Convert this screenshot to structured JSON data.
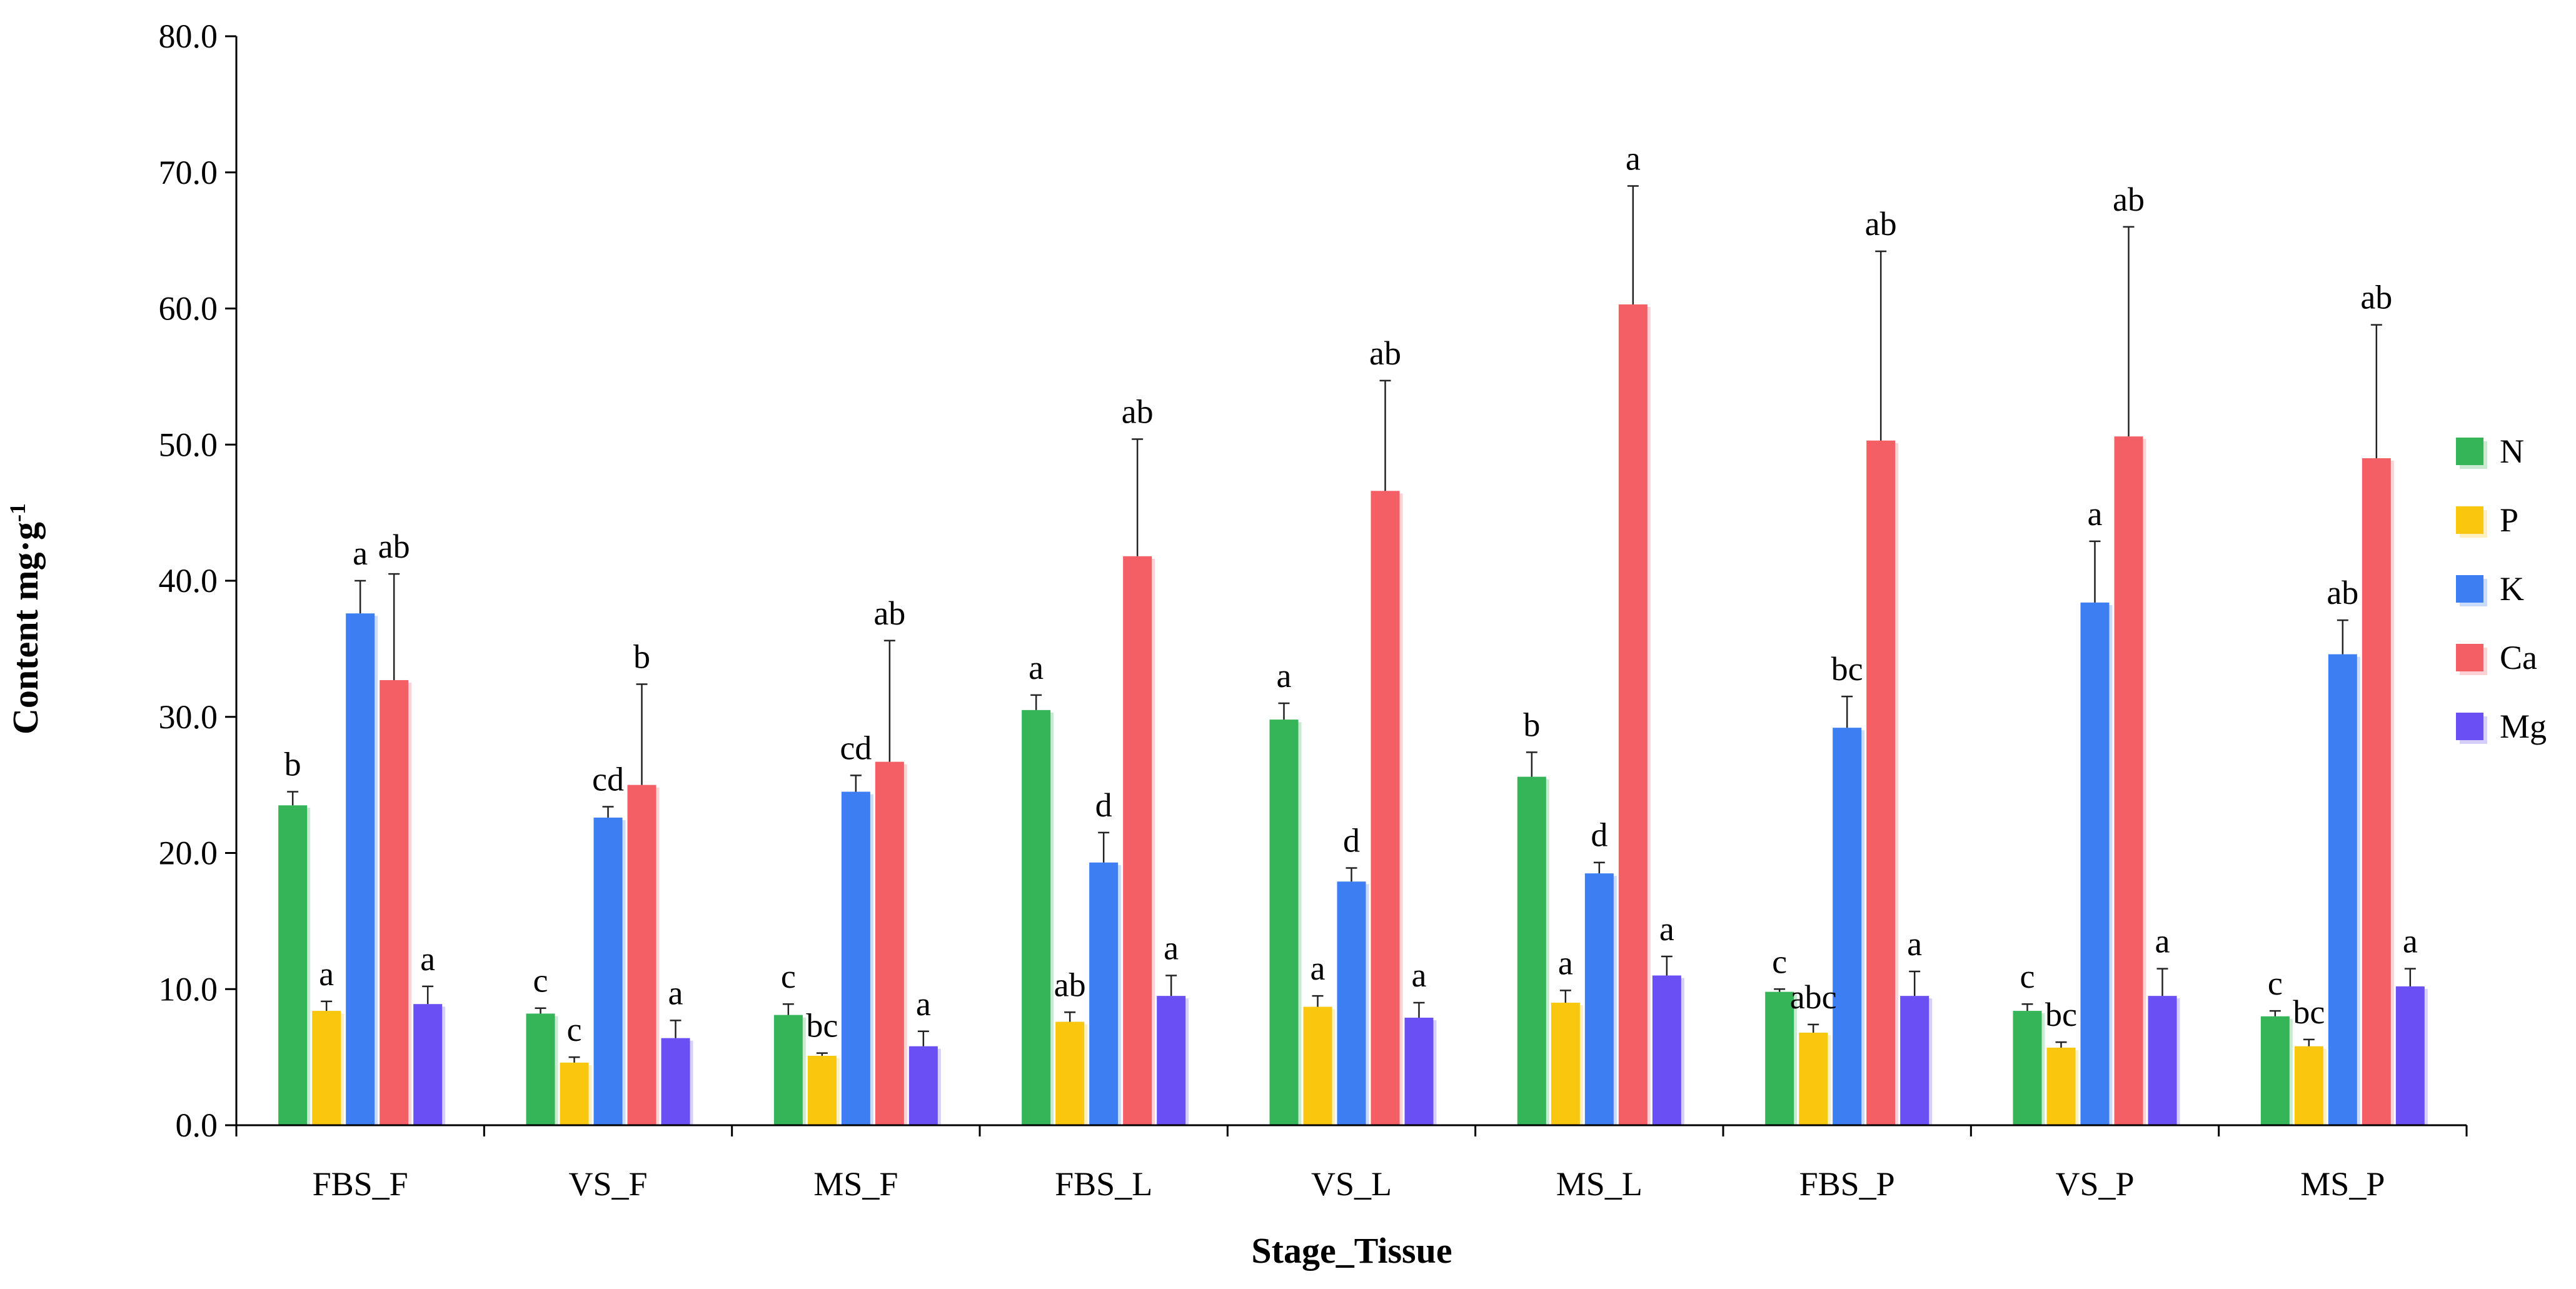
{
  "chart_data": {
    "type": "bar",
    "title": "",
    "xlabel": "Stage_Tissue",
    "ylabel": "Content mg·g",
    "ylabel_sup": "-1",
    "ylim": [
      0,
      80
    ],
    "y_ticks": [
      "0.0",
      "10.0",
      "20.0",
      "30.0",
      "40.0",
      "50.0",
      "60.0",
      "70.0",
      "80.0"
    ],
    "grid": false,
    "legend_position": "right",
    "categories": [
      "FBS_F",
      "VS_F",
      "MS_F",
      "FBS_L",
      "VS_L",
      "MS_L",
      "FBS_P",
      "VS_P",
      "MS_P"
    ],
    "series": [
      {
        "name": "N",
        "color": "#35b558",
        "values": [
          23.5,
          8.2,
          8.1,
          30.5,
          29.8,
          25.6,
          9.8,
          8.4,
          8.0
        ],
        "errors": [
          1.0,
          0.4,
          0.8,
          1.1,
          1.2,
          1.8,
          0.2,
          0.5,
          0.4
        ],
        "labels": [
          "b",
          "c",
          "c",
          "a",
          "a",
          "b",
          "c",
          "c",
          "c"
        ]
      },
      {
        "name": "P",
        "color": "#f9c80e",
        "values": [
          8.4,
          4.6,
          5.1,
          7.6,
          8.7,
          9.0,
          6.8,
          5.7,
          5.8
        ],
        "errors": [
          0.7,
          0.4,
          0.2,
          0.7,
          0.8,
          0.9,
          0.6,
          0.4,
          0.5
        ],
        "labels": [
          "a",
          "c",
          "bc",
          "ab",
          "a",
          "a",
          "abc",
          "bc",
          "bc"
        ]
      },
      {
        "name": "K",
        "color": "#3d7ef2",
        "values": [
          37.6,
          22.6,
          24.5,
          19.3,
          17.9,
          18.5,
          29.2,
          38.4,
          34.6
        ],
        "errors": [
          2.4,
          0.8,
          1.2,
          2.2,
          1.0,
          0.8,
          2.3,
          4.5,
          2.5
        ],
        "labels": [
          "a",
          "cd",
          "cd",
          "d",
          "d",
          "d",
          "bc",
          "a",
          "ab"
        ]
      },
      {
        "name": "Ca",
        "color": "#f45f66",
        "values": [
          32.7,
          25.0,
          26.7,
          41.8,
          46.6,
          60.3,
          50.3,
          50.6,
          49.0
        ],
        "errors": [
          7.8,
          7.4,
          8.9,
          8.6,
          8.1,
          8.7,
          13.9,
          15.4,
          9.8
        ],
        "labels": [
          "ab",
          "b",
          "ab",
          "ab",
          "ab",
          "a",
          "ab",
          "ab",
          "ab"
        ]
      },
      {
        "name": "Mg",
        "color": "#6a4ff5",
        "values": [
          8.9,
          6.4,
          5.8,
          9.5,
          7.9,
          11.0,
          9.5,
          9.5,
          10.2
        ],
        "errors": [
          1.3,
          1.3,
          1.1,
          1.5,
          1.1,
          1.4,
          1.8,
          2.0,
          1.3
        ],
        "labels": [
          "a",
          "a",
          "a",
          "a",
          "a",
          "a",
          "a",
          "a",
          "a"
        ]
      }
    ]
  }
}
